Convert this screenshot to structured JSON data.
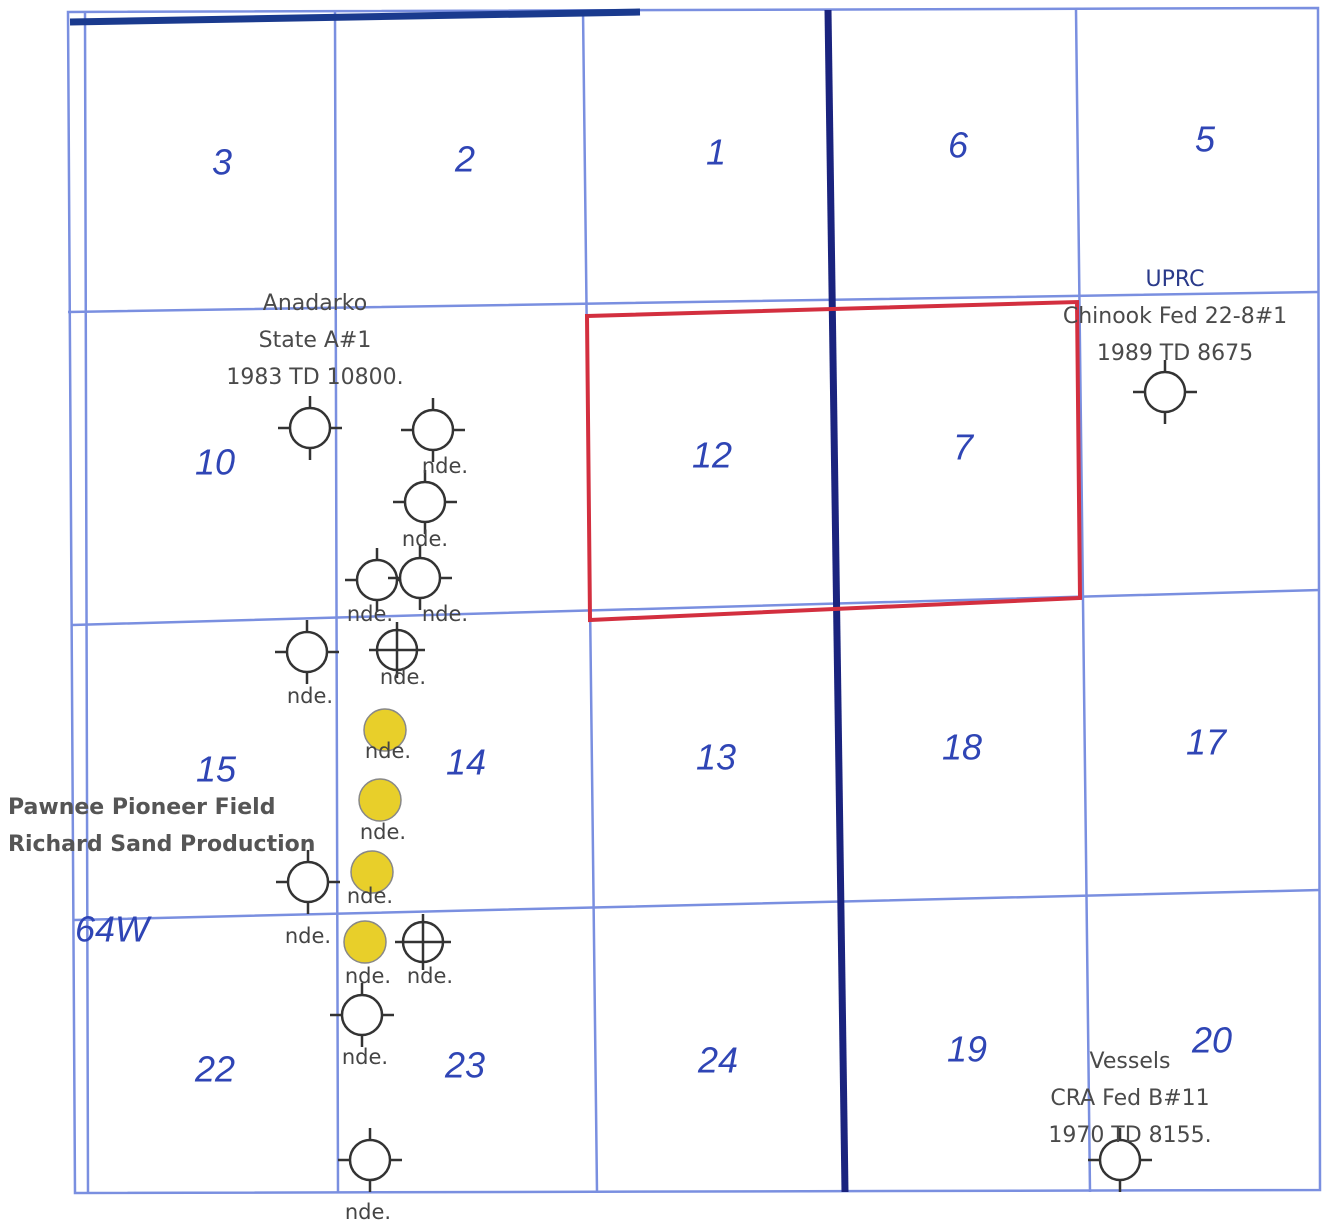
{
  "map": {
    "sections": [
      "3",
      "2",
      "1",
      "6",
      "5",
      "10",
      "12",
      "7",
      "15",
      "14",
      "13",
      "18",
      "17",
      "22",
      "23",
      "24",
      "19",
      "20"
    ],
    "township": "64W",
    "wells": [
      {
        "lines": [
          "Anadarko",
          "State A#1",
          "1983 TD 10800."
        ]
      },
      {
        "lines": [
          "UPRC",
          "Chinook Fed 22-8#1",
          "1989 TD 8675"
        ]
      },
      {
        "lines": [
          "Vessels",
          "CRA Fed B#11",
          "1970 TD 8155."
        ]
      }
    ],
    "field": [
      "Pawnee Pioneer Field",
      "Richard Sand Production"
    ],
    "nde": [
      "nde.",
      "nde.",
      "nde.",
      "nde.",
      "nde.",
      "nde.",
      "nde.",
      "nde.",
      "nde.",
      "nde.",
      "nde.",
      "nde.",
      "nde.",
      "nde."
    ]
  }
}
